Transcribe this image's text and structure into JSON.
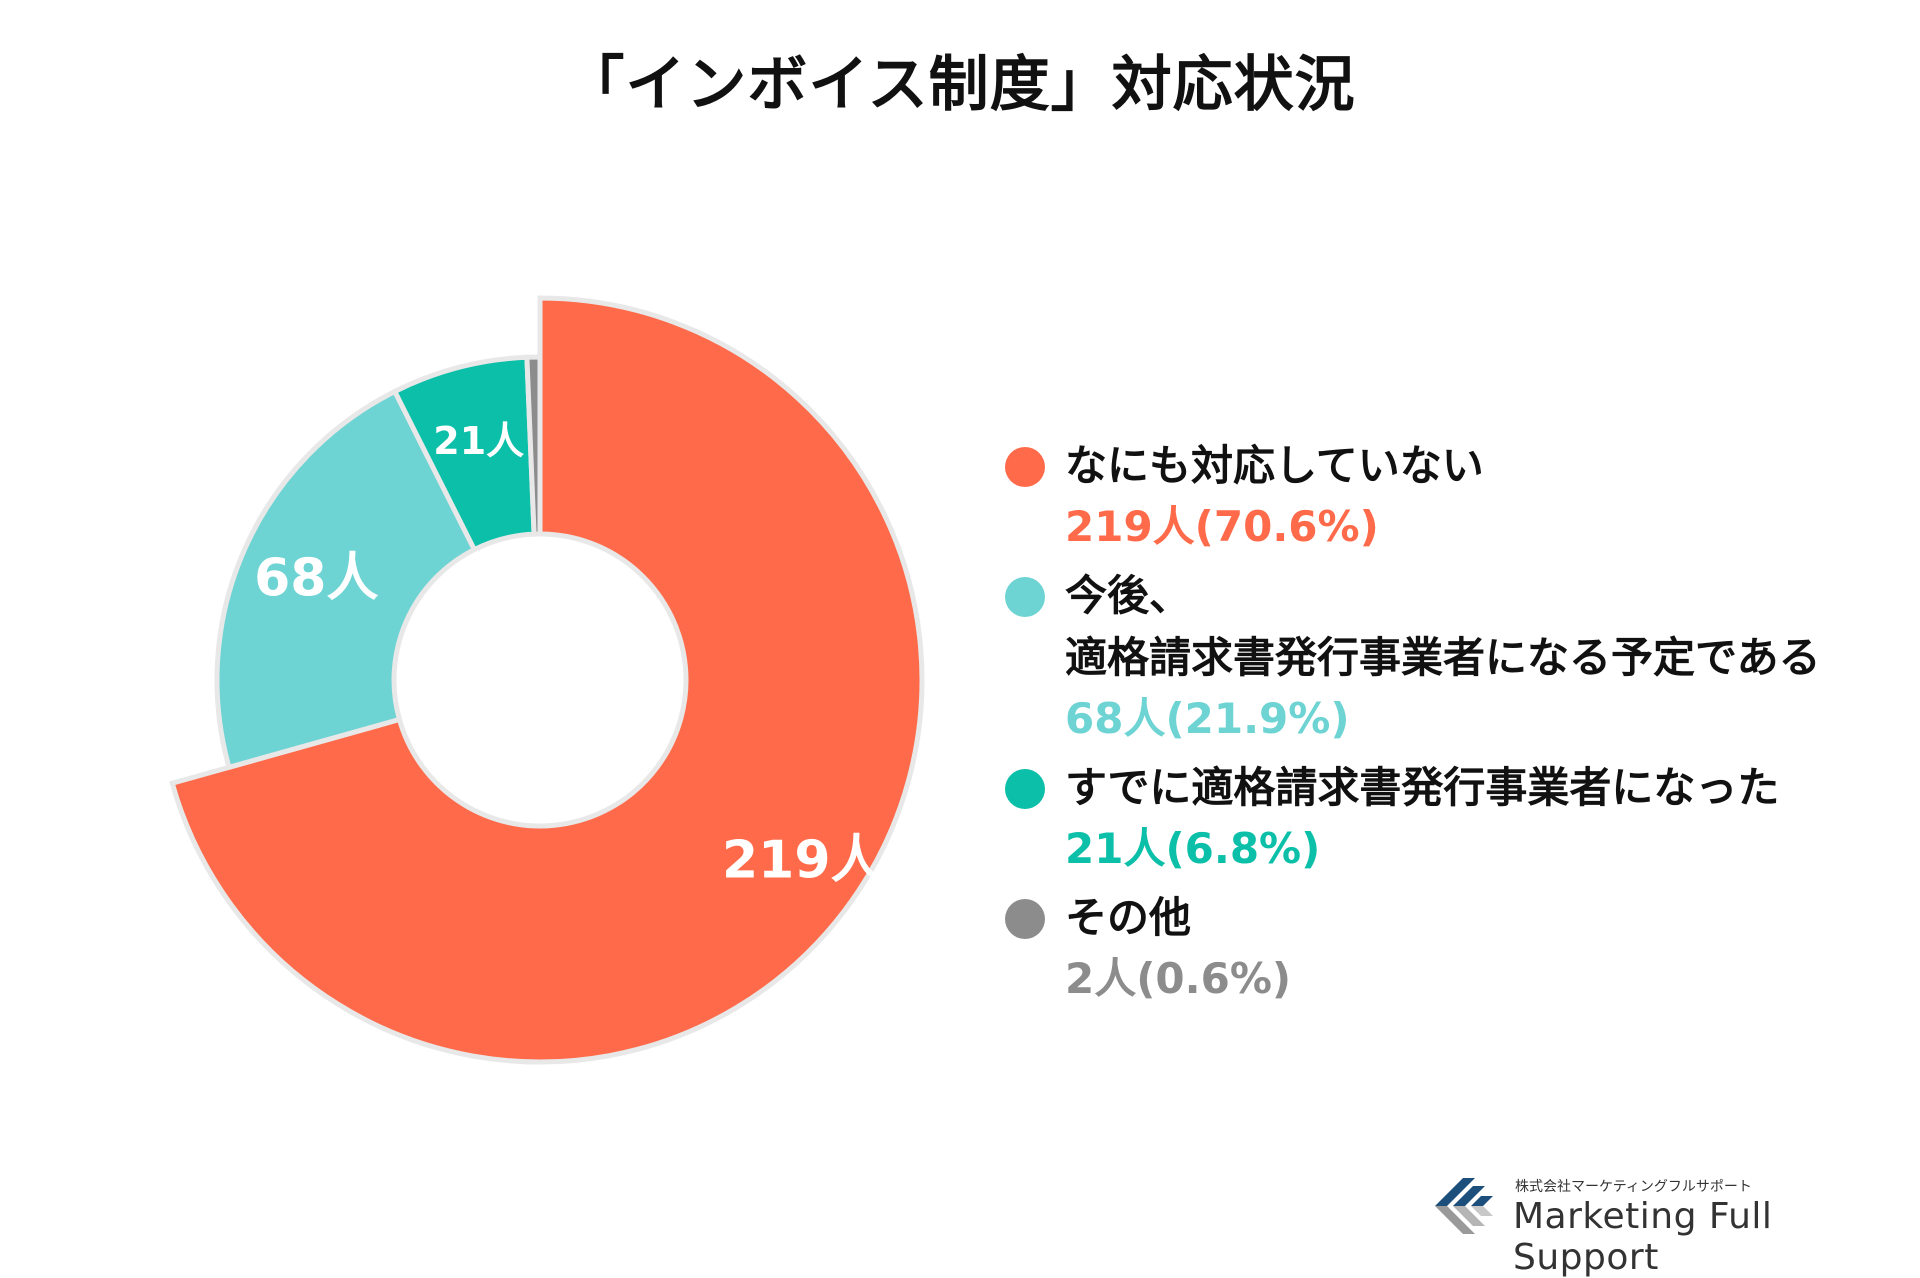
{
  "title": "「インボイス制度」対応状況",
  "chart_data": {
    "type": "pie",
    "title": "「インボイス制度」対応状況",
    "donut": true,
    "legend_position": "right",
    "unit": "人",
    "slices": [
      {
        "name": "なにも対応していない",
        "value": 219,
        "percent": 70.6,
        "slice_label": "219人",
        "legend_value": "219人(70.6%)",
        "color": "#FF6B4A",
        "emphasized": true
      },
      {
        "name": "今後、\n適格請求書発行事業者になる予定である",
        "name_lines": [
          "今後、",
          "適格請求書発行事業者になる予定である"
        ],
        "value": 68,
        "percent": 21.9,
        "slice_label": "68人",
        "legend_value": "68人(21.9%)",
        "color": "#6DD3D3"
      },
      {
        "name": "すでに適格請求書発行事業者になった",
        "value": 21,
        "percent": 6.8,
        "slice_label": "21人",
        "legend_value": "21人(6.8%)",
        "color": "#0BBFA8"
      },
      {
        "name": "その他",
        "value": 2,
        "percent": 0.6,
        "slice_label": "",
        "legend_value": "2人(0.6%)",
        "color": "#8C8C8C"
      }
    ]
  },
  "logo": {
    "company_jp": "株式会社マーケティングフルサポート",
    "company_en": "Marketing Full Support"
  }
}
